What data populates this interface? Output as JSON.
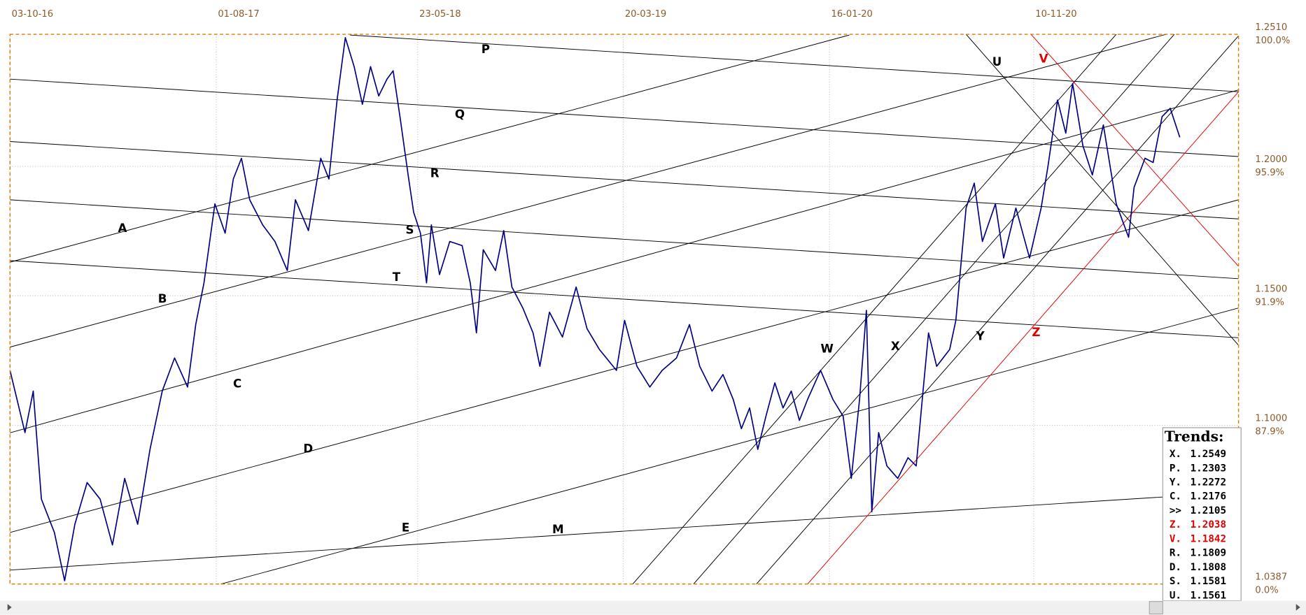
{
  "chart_data": {
    "type": "line",
    "xlim": [
      0,
      1799
    ],
    "ylim": [
      1.0387,
      1.251
    ],
    "xticks": [
      {
        "value": 0,
        "label": "03-10-16"
      },
      {
        "value": 302,
        "label": "01-08-17"
      },
      {
        "value": 597,
        "label": "23-05-18"
      },
      {
        "value": 898,
        "label": "20-03-19"
      },
      {
        "value": 1200,
        "label": "16-01-20"
      },
      {
        "value": 1499,
        "label": "10-11-20"
      }
    ],
    "yticks": [
      {
        "value": 1.251,
        "label": "1.2510"
      },
      {
        "value": 1.2,
        "label": "1.2000"
      },
      {
        "value": 1.15,
        "label": "1.1500"
      },
      {
        "value": 1.1,
        "label": "1.1000"
      },
      {
        "value": 1.0387,
        "label": "1.0387"
      }
    ],
    "ytick_pct_labels": [
      "100.0%",
      "95.9%",
      "91.9%",
      "87.9%",
      "0.0%"
    ],
    "grid": true,
    "series": [
      {
        "color": "#000080",
        "x": [
          0,
          22,
          34,
          46,
          65,
          80,
          95,
          113,
          132,
          150,
          168,
          187,
          205,
          223,
          241,
          260,
          272,
          284,
          300,
          315,
          327,
          339,
          351,
          370,
          388,
          406,
          418,
          437,
          455,
          467,
          479,
          491,
          504,
          516,
          528,
          540,
          552,
          561,
          571,
          583,
          591,
          601,
          610,
          617,
          629,
          644,
          662,
          674,
          683,
          693,
          711,
          723,
          735,
          751,
          766,
          776,
          790,
          809,
          829,
          845,
          863,
          888,
          900,
          918,
          937,
          955,
          976,
          995,
          1010,
          1028,
          1044,
          1059,
          1071,
          1083,
          1095,
          1107,
          1120,
          1132,
          1144,
          1156,
          1168,
          1187,
          1205,
          1220,
          1232,
          1244,
          1254,
          1262,
          1272,
          1284,
          1300,
          1315,
          1327,
          1337,
          1345,
          1357,
          1376,
          1385,
          1400,
          1412,
          1424,
          1443,
          1455,
          1473,
          1493,
          1510,
          1520,
          1534,
          1546,
          1556,
          1571,
          1585,
          1601,
          1620,
          1638,
          1646,
          1662,
          1674,
          1687,
          1699,
          1713
        ],
        "values": [
          1.1212,
          1.0972,
          1.1132,
          1.0715,
          1.0586,
          1.04,
          1.0618,
          1.0779,
          1.0715,
          1.0538,
          1.0795,
          1.0618,
          1.0907,
          1.1132,
          1.126,
          1.1148,
          1.1389,
          1.155,
          1.1855,
          1.1742,
          1.1951,
          1.2031,
          1.1871,
          1.1774,
          1.171,
          1.1598,
          1.1871,
          1.1752,
          1.2031,
          1.1951,
          1.2256,
          1.2497,
          1.2385,
          1.224,
          1.2385,
          1.2272,
          1.2337,
          1.2369,
          1.2192,
          1.1967,
          1.1823,
          1.1742,
          1.155,
          1.1774,
          1.1582,
          1.171,
          1.1694,
          1.155,
          1.1357,
          1.1678,
          1.1598,
          1.1752,
          1.1534,
          1.1453,
          1.1357,
          1.1228,
          1.1437,
          1.1341,
          1.1534,
          1.1373,
          1.1293,
          1.1212,
          1.1405,
          1.1228,
          1.1148,
          1.1212,
          1.126,
          1.1389,
          1.1228,
          1.1132,
          1.1196,
          1.11,
          1.0987,
          1.1067,
          1.0907,
          1.1035,
          1.1164,
          1.1067,
          1.1132,
          1.1019,
          1.11,
          1.1212,
          1.11,
          1.1035,
          1.0795,
          1.11,
          1.1444,
          1.0666,
          1.0972,
          1.0843,
          1.0795,
          1.0875,
          1.0843,
          1.1132,
          1.1357,
          1.1228,
          1.1293,
          1.1405,
          1.1839,
          1.1935,
          1.171,
          1.1855,
          1.1646,
          1.1839,
          1.1646,
          1.1839,
          1.2,
          1.2256,
          1.2128,
          1.232,
          1.208,
          1.1967,
          1.216,
          1.1855,
          1.1726,
          1.1919,
          1.2031,
          1.2015,
          1.2192,
          1.2224,
          1.2112
        ]
      }
    ],
    "trendlines": [
      {
        "name": "P",
        "color": "#000000",
        "x": [
          498,
          1799
        ],
        "y": [
          1.2507,
          1.2288
        ]
      },
      {
        "name": "Q",
        "color": "#000000",
        "x": [
          0,
          1799
        ],
        "y": [
          1.2337,
          1.2038
        ]
      },
      {
        "name": "R",
        "color": "#000000",
        "x": [
          0,
          1799
        ],
        "y": [
          1.2096,
          1.1797
        ]
      },
      {
        "name": "S",
        "color": "#000000",
        "x": [
          0,
          1799
        ],
        "y": [
          1.1871,
          1.1566
        ]
      },
      {
        "name": "T",
        "color": "#000000",
        "x": [
          0,
          1799
        ],
        "y": [
          1.1636,
          1.1338
        ]
      },
      {
        "name": "A",
        "color": "#000000",
        "x": [
          0,
          1229
        ],
        "y": [
          1.163,
          1.2507
        ]
      },
      {
        "name": "B",
        "color": "#000000",
        "x": [
          0,
          1693
        ],
        "y": [
          1.1302,
          1.251
        ]
      },
      {
        "name": "C",
        "color": "#000000",
        "x": [
          0,
          1799
        ],
        "y": [
          1.0971,
          1.2295
        ]
      },
      {
        "name": "D",
        "color": "#000000",
        "x": [
          0,
          1799
        ],
        "y": [
          1.0586,
          1.1871
        ]
      },
      {
        "name": "E",
        "color": "#000000",
        "x": [
          309,
          1799
        ],
        "y": [
          1.0387,
          1.1453
        ]
      },
      {
        "name": "M",
        "color": "#000000",
        "x": [
          0,
          1693
        ],
        "y": [
          1.0441,
          1.0724
        ]
      },
      {
        "name": "W",
        "color": "#000000",
        "x": [
          912,
          1620
        ],
        "y": [
          1.0387,
          1.251
        ]
      },
      {
        "name": "X",
        "color": "#000000",
        "x": [
          1001,
          1705
        ],
        "y": [
          1.0387,
          1.251
        ]
      },
      {
        "name": "Y",
        "color": "#000000",
        "x": [
          1093,
          1799
        ],
        "y": [
          1.0387,
          1.2504
        ]
      },
      {
        "name": "Z",
        "color": "#e00000",
        "x": [
          1168,
          1799
        ],
        "y": [
          1.0387,
          1.2288
        ]
      },
      {
        "name": "U",
        "color": "#000000",
        "x": [
          1400,
          1799
        ],
        "y": [
          1.251,
          1.1309
        ]
      },
      {
        "name": "V",
        "color": "#e00000",
        "x": [
          1495,
          1799
        ],
        "y": [
          1.251,
          1.1614
        ]
      }
    ],
    "trends": {
      "title": "Trends:",
      "items": [
        {
          "label": "X.",
          "value": 1.2549,
          "color": "#000000"
        },
        {
          "label": "P.",
          "value": 1.2303,
          "color": "#000000"
        },
        {
          "label": "Y.",
          "value": 1.2272,
          "color": "#000000"
        },
        {
          "label": "C.",
          "value": 1.2176,
          "color": "#000000"
        },
        {
          "label": ">>",
          "value": 1.2105,
          "color": "#000000"
        },
        {
          "label": "Z.",
          "value": 1.2038,
          "color": "#e00000"
        },
        {
          "label": "V.",
          "value": 1.1842,
          "color": "#e00000"
        },
        {
          "label": "R.",
          "value": 1.1809,
          "color": "#000000"
        },
        {
          "label": "D.",
          "value": 1.1808,
          "color": "#000000"
        },
        {
          "label": "S.",
          "value": 1.1581,
          "color": "#000000"
        },
        {
          "label": "U.",
          "value": 1.1561,
          "color": "#000000"
        }
      ]
    }
  }
}
